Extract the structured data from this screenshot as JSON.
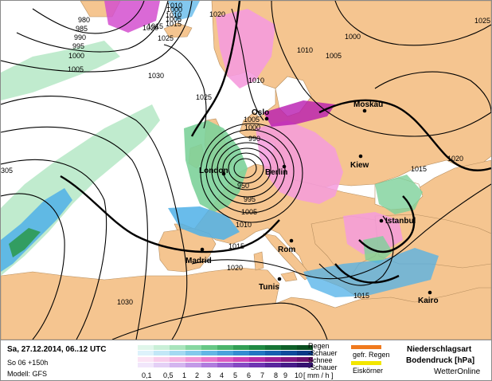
{
  "cities": [
    {
      "name": "Oslo"
    },
    {
      "name": "Moskau"
    },
    {
      "name": "London"
    },
    {
      "name": "Berlin"
    },
    {
      "name": "Kiew"
    },
    {
      "name": "Madrid"
    },
    {
      "name": "Rom"
    },
    {
      "name": "Istanbul"
    },
    {
      "name": "Tunis"
    },
    {
      "name": "Kairo"
    }
  ],
  "isobars": [
    "980",
    "985",
    "990",
    "995",
    "1000",
    "1005",
    "1010",
    "1015",
    "1020",
    "1025",
    "1030",
    "1010",
    "1020",
    "1000",
    "1025",
    "1005",
    "1010",
    "1005",
    "1000",
    "990",
    "950",
    "995",
    "1005",
    "1010",
    "1015",
    "1020",
    "1030",
    "1015",
    "1020",
    "1015",
    "305",
    "1015",
    "1025",
    "1010",
    "1000",
    "1005",
    "1015",
    "1020",
    "1030"
  ],
  "legend": {
    "date_line": "Sa, 27.12.2014, 06..12 UTC",
    "run_line": "So 06 +150h",
    "model_line": "Modell: GFS",
    "rain": "Regen",
    "rain_showers": "-Schauer",
    "snow": "Schnee",
    "snow_showers": "-Schauer",
    "unit": "[ mm / h ]",
    "scale": [
      "0,1",
      "0,5",
      "1",
      "2",
      "3",
      "4",
      "5",
      "6",
      "7",
      "8",
      "9",
      "10"
    ],
    "freezing_rain": "gefr. Regen",
    "sleet": "Eiskörner",
    "title1": "Niederschlagsart",
    "title2": "Bodendruck [hPa]",
    "credit": "WetterOnline"
  },
  "colors": {
    "sea": "#ffffff",
    "land": "#f5c590",
    "rain_light": "#b9e9c9",
    "rain_heavy": "#0c5a22",
    "showers": "#4fb0e8",
    "snow": "#f59bdd",
    "snow_heavy": "#b81ab0",
    "freezing_rain": "#f07a1e",
    "sleet": "#f3e600",
    "isobar": "#000000"
  }
}
